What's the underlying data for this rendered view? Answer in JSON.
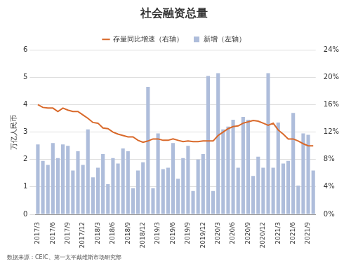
{
  "chart_data": {
    "type": "bar",
    "title": "社会融资总量",
    "y_label": "万亿人民币",
    "source": "数据来源：CEIC、第一太平戴维斯市场研究部",
    "categories": [
      "2017/3",
      null,
      null,
      "2017/6",
      null,
      null,
      "2017/9",
      null,
      null,
      "2017/12",
      null,
      null,
      "2018/3",
      null,
      null,
      "2018/6",
      null,
      null,
      "2018/9",
      null,
      null,
      "2018/12",
      null,
      null,
      "2019/3",
      null,
      null,
      "2019/6",
      null,
      null,
      "2019/9",
      null,
      null,
      "2019/12",
      null,
      null,
      "2020/3",
      null,
      null,
      "2020/6",
      null,
      null,
      "2020/9",
      null,
      null,
      "2020/12",
      null,
      null,
      "2021/3",
      null,
      null,
      "2021/6",
      null,
      null,
      "2021/9",
      null
    ],
    "series": [
      {
        "name": "新增（左轴）",
        "type": "bar",
        "color": "#aebddb",
        "axis": "y",
        "values": [
          2.55,
          1.95,
          1.8,
          2.6,
          2.05,
          2.55,
          2.5,
          1.6,
          2.3,
          1.8,
          3.1,
          1.35,
          1.7,
          2.2,
          1.1,
          2.05,
          1.85,
          2.4,
          2.3,
          0.95,
          1.6,
          1.9,
          4.65,
          0.95,
          2.95,
          1.65,
          1.7,
          2.6,
          1.3,
          2.05,
          2.5,
          0.85,
          2.0,
          2.2,
          5.05,
          0.85,
          5.15,
          3.1,
          3.2,
          3.45,
          1.7,
          3.55,
          3.45,
          1.4,
          2.1,
          1.7,
          5.15,
          1.7,
          3.35,
          1.85,
          1.95,
          3.7,
          1.05,
          2.95,
          2.9,
          1.6
        ]
      },
      {
        "name": "存量同比增速（右轴）",
        "type": "line",
        "color": "#d9692a",
        "axis": "y2",
        "line_style": "solid",
        "values": [
          16.0,
          15.6,
          15.5,
          15.5,
          15.0,
          15.5,
          15.2,
          15.0,
          15.0,
          14.5,
          14.0,
          13.4,
          13.3,
          12.6,
          12.5,
          12.0,
          11.7,
          11.5,
          11.3,
          11.3,
          10.8,
          10.5,
          10.7,
          11.0,
          11.0,
          10.8,
          10.8,
          11.0,
          10.8,
          10.6,
          10.7,
          10.6,
          10.6,
          10.7,
          10.7,
          10.7,
          11.5,
          12.0,
          12.5,
          12.8,
          12.9,
          13.3,
          13.5,
          13.7,
          13.6,
          13.3,
          13.0,
          13.3,
          12.3,
          11.7,
          11.0,
          11.0,
          10.7,
          10.3,
          10.0,
          10.0
        ]
      }
    ],
    "ylim": [
      0,
      6
    ],
    "yticks": [
      0,
      1,
      2,
      3,
      4,
      5,
      6
    ],
    "y2lim": [
      0,
      24
    ],
    "y2ticks": [
      {
        "value": 0,
        "label": "0%"
      },
      {
        "value": 4,
        "label": "4%"
      },
      {
        "value": 8,
        "label": "8%"
      },
      {
        "value": 12,
        "label": "12%"
      },
      {
        "value": 16,
        "label": "16%"
      },
      {
        "value": 20,
        "label": "20%"
      },
      {
        "value": 24,
        "label": "24%"
      }
    ],
    "grid": true,
    "legend": "top"
  }
}
